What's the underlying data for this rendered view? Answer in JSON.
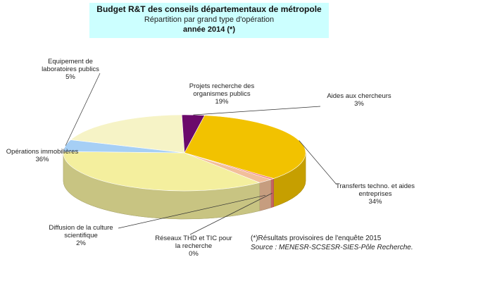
{
  "header": {
    "title": "Budget R&T des conseils départementaux de métropole",
    "subtitle": "Répartition par grand type d'opération",
    "year": "année 2014 (*)"
  },
  "chart_data": {
    "type": "pie",
    "title": "Budget R&T des conseils départementaux de métropole",
    "subtitle": "Répartition par grand type d'opération",
    "year": "année 2014 (*)",
    "slices": [
      {
        "label_lines": [
          "Projets recherche des",
          "organismes publics"
        ],
        "value_label": "19%",
        "value": 19,
        "color": "#f6f3c6"
      },
      {
        "label_lines": [
          "Aides aux chercheurs"
        ],
        "value_label": "3%",
        "value": 3,
        "color": "#6b0a6b"
      },
      {
        "label_lines": [
          "Transferts techno. et aides",
          "entreprises"
        ],
        "value_label": "34%",
        "value": 34,
        "color": "#f2c200"
      },
      {
        "label_lines": [
          "Réseaux THD et TIC pour",
          "la recherche"
        ],
        "value_label": "0%",
        "value": 0.5,
        "color": "#f07878"
      },
      {
        "label_lines": [
          "Diffusion de la culture",
          "scientifique"
        ],
        "value_label": "2%",
        "value": 2,
        "color": "#f2bf9b"
      },
      {
        "label_lines": [
          "Opérations immobilières"
        ],
        "value_label": "36%",
        "value": 36,
        "color": "#f4ef9e"
      },
      {
        "label_lines": [
          "Equipement de",
          "laboratoires publics"
        ],
        "value_label": "5%",
        "value": 5,
        "color": "#a6cff5"
      }
    ]
  },
  "footnote": {
    "note": "(*)Résultats provisoires de l'enquête 2015",
    "source": "Source : MENESR-SCSESR-SIES-Pôle Recherche."
  }
}
